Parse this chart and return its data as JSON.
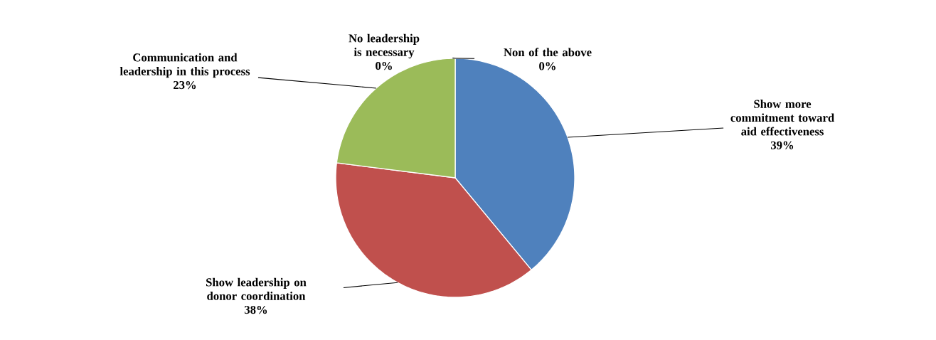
{
  "chart_data": {
    "type": "pie",
    "categories": [
      "Show more commitment toward aid effectiveness",
      "Show leadership on donor coordination",
      "Communication and leadership in this process",
      "No leadership is necessary",
      "Non of the above"
    ],
    "values": [
      39,
      38,
      23,
      0,
      0
    ],
    "value_labels": [
      "39%",
      "38%",
      "23%",
      "0%",
      "0%"
    ],
    "colors": [
      "#4f81bd",
      "#c0504d",
      "#9bbb59",
      "#8064a2",
      "#4bacc6"
    ]
  }
}
